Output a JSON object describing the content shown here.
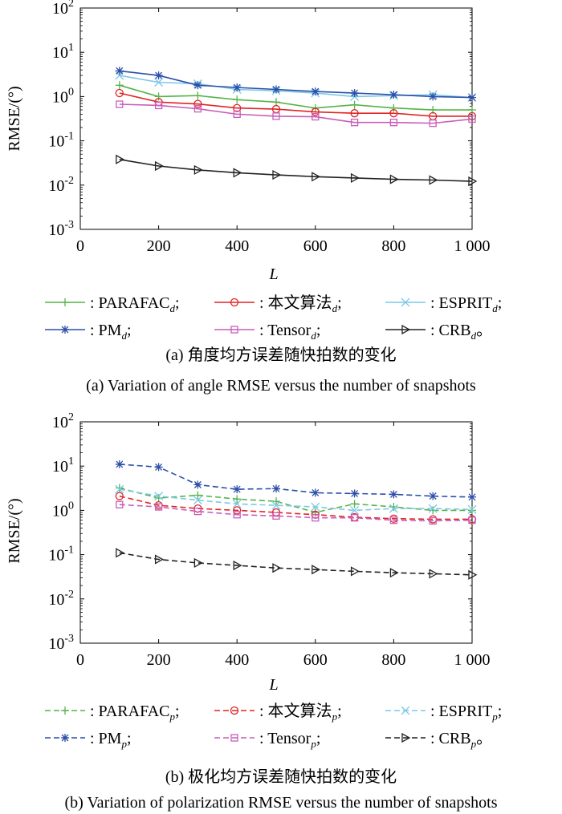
{
  "chart_data": [
    {
      "type": "line",
      "yscale": "log",
      "xlabel": "L",
      "ylabel": "RMSE/(°)",
      "xlim": [
        0,
        1000
      ],
      "ylim": [
        0.001,
        100
      ],
      "xticks": [
        "0",
        "200",
        "400",
        "600",
        "800",
        "1 000"
      ],
      "x": [
        100,
        200,
        300,
        400,
        500,
        600,
        700,
        800,
        900,
        1000
      ],
      "line_style": "solid",
      "series": [
        {
          "name": "PARAFAC",
          "sub": "d",
          "color": "#55b447",
          "marker": "plus",
          "values": [
            1.8,
            1.0,
            1.05,
            0.85,
            0.75,
            0.55,
            0.65,
            0.55,
            0.5,
            0.5
          ]
        },
        {
          "name": "本文算法",
          "sub": "d",
          "color": "#e02424",
          "marker": "circle",
          "values": [
            1.2,
            0.75,
            0.68,
            0.55,
            0.52,
            0.45,
            0.42,
            0.42,
            0.36,
            0.36
          ]
        },
        {
          "name": "ESPRIT",
          "sub": "d",
          "color": "#7cc8e6",
          "marker": "x",
          "values": [
            3.0,
            2.1,
            1.95,
            1.45,
            1.35,
            1.2,
            1.0,
            1.05,
            1.1,
            0.95
          ]
        },
        {
          "name": "PM",
          "sub": "d",
          "color": "#2b4fa8",
          "marker": "star",
          "values": [
            3.8,
            3.0,
            1.8,
            1.6,
            1.45,
            1.3,
            1.2,
            1.1,
            1.0,
            0.95
          ]
        },
        {
          "name": "Tensor",
          "sub": "d",
          "color": "#c95db9",
          "marker": "square",
          "values": [
            0.67,
            0.63,
            0.53,
            0.4,
            0.36,
            0.35,
            0.26,
            0.26,
            0.25,
            0.31
          ]
        },
        {
          "name": "CRB",
          "sub": "d",
          "color": "#222222",
          "marker": "triangle",
          "values": [
            0.038,
            0.027,
            0.022,
            0.019,
            0.017,
            0.0155,
            0.0145,
            0.0135,
            0.013,
            0.0122
          ]
        }
      ],
      "caption_cn": "(a) 角度均方误差随快拍数的变化",
      "caption_en": "(a) Variation of angle RMSE versus the number of snapshots"
    },
    {
      "type": "line",
      "yscale": "log",
      "xlabel": "L",
      "ylabel": "RMSE/(°)",
      "xlim": [
        0,
        1000
      ],
      "ylim": [
        0.001,
        100
      ],
      "xticks": [
        "0",
        "200",
        "400",
        "600",
        "800",
        "1 000"
      ],
      "x": [
        100,
        200,
        300,
        400,
        500,
        600,
        700,
        800,
        900,
        1000
      ],
      "line_style": "dashed",
      "series": [
        {
          "name": "PARAFAC",
          "sub": "p",
          "color": "#55b447",
          "marker": "plus",
          "values": [
            3.2,
            1.9,
            2.2,
            1.8,
            1.6,
            0.9,
            1.4,
            1.2,
            1.0,
            1.0
          ]
        },
        {
          "name": "本文算法",
          "sub": "p",
          "color": "#e02424",
          "marker": "circle",
          "values": [
            2.1,
            1.3,
            1.1,
            1.0,
            0.9,
            0.8,
            0.7,
            0.65,
            0.63,
            0.63
          ]
        },
        {
          "name": "ESPRIT",
          "sub": "p",
          "color": "#7cc8e6",
          "marker": "x",
          "values": [
            3.0,
            2.1,
            1.7,
            1.4,
            1.3,
            1.2,
            1.0,
            1.1,
            1.1,
            1.05
          ]
        },
        {
          "name": "PM",
          "sub": "p",
          "color": "#2b4fa8",
          "marker": "star",
          "values": [
            11,
            9.5,
            3.8,
            3.0,
            3.1,
            2.5,
            2.4,
            2.3,
            2.1,
            2.0
          ]
        },
        {
          "name": "Tensor",
          "sub": "p",
          "color": "#c95db9",
          "marker": "square",
          "values": [
            1.35,
            1.2,
            0.95,
            0.8,
            0.75,
            0.68,
            0.68,
            0.6,
            0.58,
            0.6
          ]
        },
        {
          "name": "CRB",
          "sub": "p",
          "color": "#222222",
          "marker": "triangle",
          "values": [
            0.11,
            0.078,
            0.065,
            0.057,
            0.05,
            0.046,
            0.042,
            0.039,
            0.037,
            0.035
          ]
        }
      ],
      "caption_cn": "(b) 极化均方误差随快拍数的变化",
      "caption_en": "(b) Variation of polarization RMSE versus the number of snapshots"
    }
  ]
}
